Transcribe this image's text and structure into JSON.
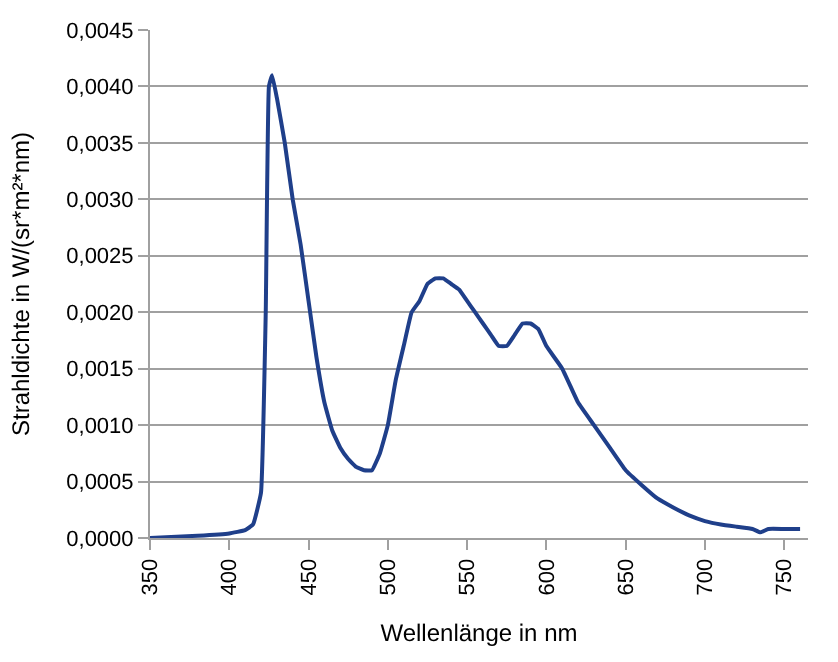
{
  "chart_data": {
    "type": "line",
    "xlabel": "Wellenlänge in nm",
    "ylabel": "Strahldichte in W/(sr*m²*nm)",
    "x": [
      350,
      380,
      400,
      410,
      415,
      420,
      423,
      425,
      427,
      430,
      435,
      440,
      445,
      450,
      455,
      460,
      465,
      470,
      475,
      480,
      485,
      490,
      495,
      500,
      505,
      510,
      515,
      520,
      525,
      530,
      535,
      540,
      545,
      550,
      555,
      560,
      565,
      570,
      575,
      580,
      585,
      590,
      595,
      600,
      610,
      620,
      630,
      640,
      650,
      660,
      670,
      680,
      690,
      700,
      710,
      720,
      730,
      735,
      740,
      750,
      760
    ],
    "series": [
      {
        "color": "#1f3f8a",
        "values": [
          0.0,
          2e-05,
          4e-05,
          7e-05,
          0.00012,
          0.0004,
          0.002,
          0.004,
          0.0041,
          0.0039,
          0.0035,
          0.003,
          0.0026,
          0.0021,
          0.0016,
          0.0012,
          0.00095,
          0.0008,
          0.0007,
          0.00063,
          0.0006,
          0.0006,
          0.00075,
          0.001,
          0.0014,
          0.0017,
          0.002,
          0.0021,
          0.00225,
          0.0023,
          0.0023,
          0.00225,
          0.0022,
          0.0021,
          0.002,
          0.0019,
          0.0018,
          0.0017,
          0.0017,
          0.0018,
          0.0019,
          0.0019,
          0.00185,
          0.0017,
          0.0015,
          0.0012,
          0.001,
          0.0008,
          0.0006,
          0.00047,
          0.00035,
          0.00027,
          0.0002,
          0.00015,
          0.00012,
          0.0001,
          8e-05,
          5e-05,
          8e-05,
          8e-05,
          8e-05
        ]
      }
    ],
    "xlim": [
      350,
      765
    ],
    "xticks": [
      350,
      400,
      450,
      500,
      550,
      600,
      650,
      700,
      750
    ],
    "ylim": [
      0,
      0.0045
    ],
    "yticks": [
      {
        "value": 0,
        "label": "0,0000"
      },
      {
        "value": 0.0005,
        "label": "0,0005"
      },
      {
        "value": 0.001,
        "label": "0,0010"
      },
      {
        "value": 0.0015,
        "label": "0,0015"
      },
      {
        "value": 0.002,
        "label": "0,0020"
      },
      {
        "value": 0.0025,
        "label": "0,0025"
      },
      {
        "value": 0.003,
        "label": "0,0030"
      },
      {
        "value": 0.0035,
        "label": "0,0035"
      },
      {
        "value": 0.004,
        "label": "0,0040"
      },
      {
        "value": 0.0045,
        "label": "0,0045"
      }
    ],
    "grid": "y",
    "marker": "none",
    "line_style": "solid",
    "legend": false
  }
}
